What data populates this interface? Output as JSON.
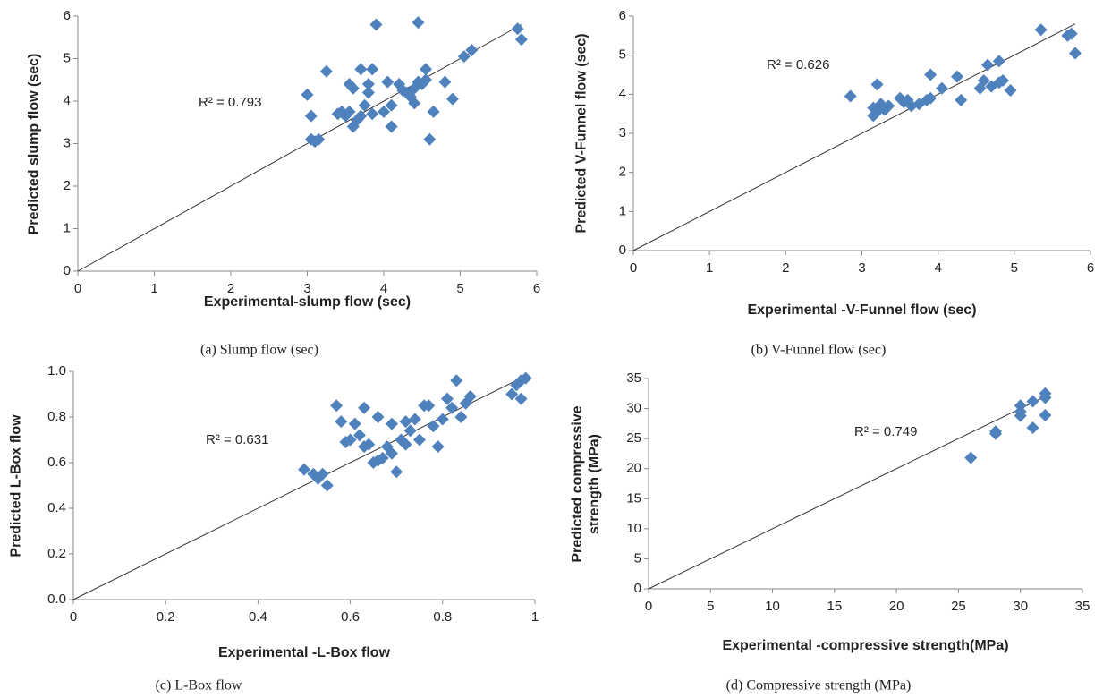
{
  "chart_data": [
    {
      "type": "scatter",
      "caption": "(a) Slump flow (sec)",
      "x_label": "Experimental-slump  flow (sec)",
      "y_label": "Predicted slump flow (sec)",
      "annotation": "R² = 0.793",
      "color": "#4f81bd",
      "xlim": [
        0,
        6
      ],
      "ylim": [
        0,
        6
      ],
      "xticks": [
        0,
        1,
        2,
        3,
        4,
        5,
        6
      ],
      "yticks": [
        0,
        1,
        2,
        3,
        4,
        5,
        6
      ],
      "x": [
        3.0,
        3.05,
        3.05,
        3.1,
        3.15,
        3.25,
        3.4,
        3.45,
        3.5,
        3.55,
        3.55,
        3.6,
        3.6,
        3.65,
        3.7,
        3.7,
        3.75,
        3.8,
        3.8,
        3.85,
        3.85,
        3.9,
        4.0,
        4.05,
        4.1,
        4.1,
        4.2,
        4.25,
        4.3,
        4.35,
        4.4,
        4.4,
        4.45,
        4.45,
        4.5,
        4.55,
        4.55,
        4.6,
        4.65,
        4.8,
        4.9,
        5.05,
        5.15,
        5.75,
        5.8
      ],
      "values": [
        4.15,
        3.65,
        3.1,
        3.05,
        3.1,
        4.7,
        3.7,
        3.75,
        3.65,
        4.4,
        3.75,
        4.3,
        3.4,
        3.55,
        4.75,
        3.65,
        3.9,
        4.2,
        4.4,
        4.75,
        3.7,
        5.8,
        3.75,
        4.45,
        3.4,
        3.9,
        4.4,
        4.25,
        4.2,
        4.1,
        3.95,
        4.3,
        4.45,
        5.85,
        4.4,
        4.75,
        4.5,
        3.1,
        3.75,
        4.45,
        4.05,
        5.05,
        5.2,
        5.7,
        5.45
      ]
    },
    {
      "type": "scatter",
      "caption": "(b) V-Funnel flow (sec)",
      "x_label": "Experimental  -V-Funnel  flow (sec)",
      "y_label": "Predicted V-Funnel  flow (sec)",
      "annotation": "R² = 0.626",
      "color": "#4f81bd",
      "xlim": [
        0,
        6
      ],
      "ylim": [
        0,
        6
      ],
      "xticks": [
        0,
        1,
        2,
        3,
        4,
        5,
        6
      ],
      "yticks": [
        0,
        1,
        2,
        3,
        4,
        5,
        6
      ],
      "x": [
        2.85,
        3.15,
        3.15,
        3.2,
        3.2,
        3.25,
        3.3,
        3.35,
        3.5,
        3.55,
        3.6,
        3.65,
        3.75,
        3.85,
        3.9,
        3.9,
        4.05,
        4.25,
        4.3,
        4.55,
        4.6,
        4.65,
        4.7,
        4.8,
        4.8,
        4.85,
        4.95,
        5.35,
        5.7,
        5.75,
        5.8
      ],
      "values": [
        3.95,
        3.45,
        3.65,
        3.55,
        4.25,
        3.75,
        3.6,
        3.7,
        3.9,
        3.8,
        3.85,
        3.7,
        3.75,
        3.85,
        4.5,
        3.9,
        4.15,
        4.45,
        3.85,
        4.15,
        4.35,
        4.75,
        4.2,
        4.85,
        4.3,
        4.35,
        4.1,
        5.65,
        5.5,
        5.55,
        5.05
      ]
    },
    {
      "type": "scatter",
      "caption": "(c) L-Box flow",
      "x_label": "Experimental  -L-Box flow",
      "y_label": "Predicted L-Box flow",
      "annotation": "R² = 0.631",
      "color": "#4f81bd",
      "xlim": [
        0,
        1
      ],
      "ylim": [
        0,
        1
      ],
      "xticks": [
        0,
        0.2,
        0.4,
        0.6,
        0.8,
        1
      ],
      "yticks": [
        {
          "value": 0,
          "label": "0.0"
        },
        0.2,
        0.4,
        0.6,
        0.8,
        {
          "value": 1,
          "label": "1.0"
        }
      ],
      "x": [
        0.5,
        0.52,
        0.53,
        0.54,
        0.55,
        0.57,
        0.58,
        0.59,
        0.6,
        0.61,
        0.62,
        0.63,
        0.63,
        0.64,
        0.65,
        0.66,
        0.66,
        0.67,
        0.68,
        0.69,
        0.69,
        0.7,
        0.71,
        0.72,
        0.72,
        0.73,
        0.74,
        0.75,
        0.76,
        0.77,
        0.78,
        0.79,
        0.8,
        0.81,
        0.82,
        0.83,
        0.84,
        0.85,
        0.86,
        0.95,
        0.96,
        0.97,
        0.97,
        0.98
      ],
      "values": [
        0.57,
        0.55,
        0.53,
        0.55,
        0.5,
        0.85,
        0.78,
        0.69,
        0.7,
        0.77,
        0.72,
        0.67,
        0.84,
        0.68,
        0.6,
        0.61,
        0.8,
        0.62,
        0.67,
        0.64,
        0.77,
        0.56,
        0.7,
        0.68,
        0.78,
        0.74,
        0.79,
        0.7,
        0.85,
        0.85,
        0.76,
        0.67,
        0.79,
        0.88,
        0.84,
        0.96,
        0.8,
        0.86,
        0.89,
        0.9,
        0.94,
        0.96,
        0.88,
        0.97
      ]
    },
    {
      "type": "scatter",
      "caption": "(d) Compressive strength (MPa)",
      "x_label": "Experimental -compressive strength(MPa)",
      "y_label": "Predicted compressive strength (MPa)",
      "annotation": "R² = 0.749",
      "color": "#4f81bd",
      "xlim": [
        0,
        35
      ],
      "ylim": [
        0,
        35
      ],
      "xticks": [
        0,
        5,
        10,
        15,
        20,
        25,
        30,
        35
      ],
      "yticks": [
        0,
        5,
        10,
        15,
        20,
        25,
        30,
        35
      ],
      "x": [
        26,
        28,
        28,
        30,
        30,
        30,
        31,
        31,
        32,
        32,
        32
      ],
      "values": [
        21.8,
        25.8,
        26.2,
        28.8,
        29.5,
        30.5,
        26.8,
        31.2,
        28.9,
        31.8,
        32.5
      ]
    }
  ]
}
